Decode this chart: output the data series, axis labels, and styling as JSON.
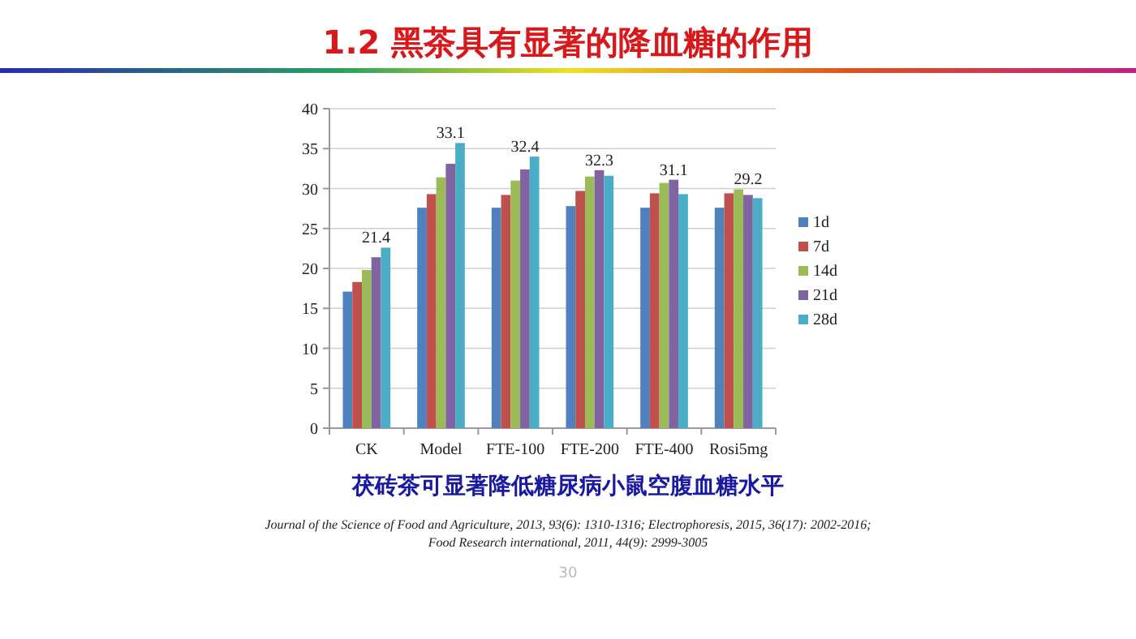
{
  "chart_data": {
    "type": "bar",
    "title": "1.2 黑茶具有显著的降血糖的作用",
    "categories": [
      "CK",
      "Model",
      "FTE-100",
      "FTE-200",
      "FTE-400",
      "Rosi5mg"
    ],
    "series": [
      {
        "name": "1d",
        "color": "#4f81bd",
        "values": [
          17.1,
          27.6,
          27.6,
          27.8,
          27.6,
          27.6
        ]
      },
      {
        "name": "7d",
        "color": "#c0504d",
        "values": [
          18.3,
          29.3,
          29.2,
          29.7,
          29.4,
          29.4
        ]
      },
      {
        "name": "14d",
        "color": "#9bbb59",
        "values": [
          19.8,
          31.4,
          31.0,
          31.5,
          30.7,
          29.9
        ]
      },
      {
        "name": "21d",
        "color": "#8064a2",
        "values": [
          21.4,
          33.1,
          32.4,
          32.3,
          31.1,
          29.2
        ],
        "value_labels": [
          "21.4",
          "33.1",
          "32.4",
          "32.3",
          "31.1",
          "29.2"
        ]
      },
      {
        "name": "28d",
        "color": "#4bacc6",
        "values": [
          22.6,
          35.7,
          34.0,
          31.6,
          29.3,
          28.8
        ]
      }
    ],
    "ylim": [
      0,
      40
    ],
    "yticks": [
      0,
      5,
      10,
      15,
      20,
      25,
      30,
      35,
      40
    ],
    "grid": "y",
    "legend": "right",
    "annotations": [
      "茯砖茶可显著降低糖尿病小鼠空腹血糖水平",
      "Journal of the Science of Food and Agriculture, 2013, 93(6): 1310-1316;  Electrophoresis, 2015, 36(17): 2002-2016;",
      "Food Research international, 2011, 44(9): 2999-3005",
      "30"
    ]
  }
}
